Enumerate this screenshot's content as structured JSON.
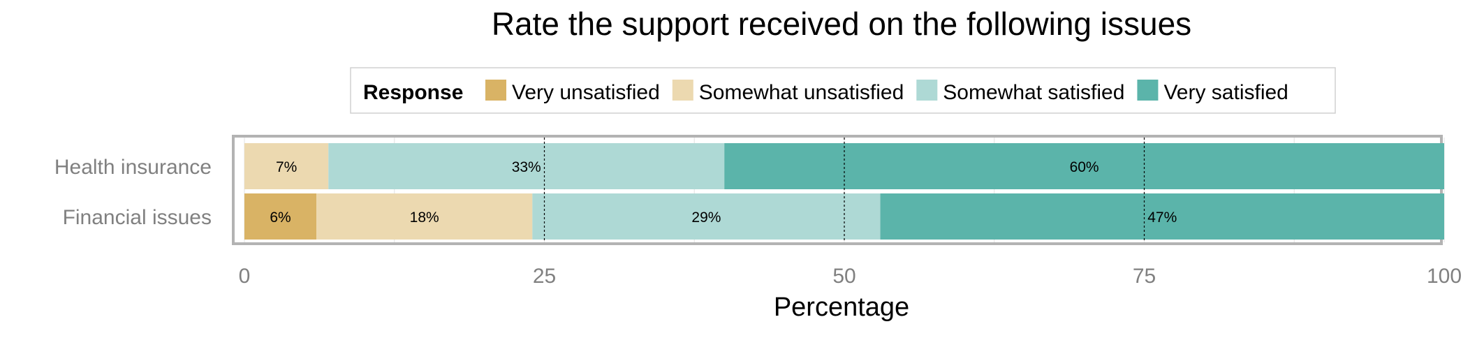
{
  "chart_data": {
    "type": "bar",
    "orientation": "horizontal",
    "stacked": true,
    "title": "Rate the support received on the following issues",
    "xlabel": "Percentage",
    "ylabel": "",
    "xlim": [
      0,
      100
    ],
    "x_ticks": [
      0,
      25,
      50,
      75,
      100
    ],
    "reference_lines": [
      25,
      50,
      75
    ],
    "grid": true,
    "legend": {
      "title": "Response",
      "position": "top"
    },
    "categories": [
      "Health insurance",
      "Financial issues"
    ],
    "series": [
      {
        "name": "Very unsatisfied",
        "color": "#d9b365",
        "values": [
          0,
          6
        ],
        "labels": [
          "",
          "6%"
        ]
      },
      {
        "name": "Somewhat unsatisfied",
        "color": "#ecd9b0",
        "values": [
          7,
          18
        ],
        "labels": [
          "7%",
          "18%"
        ]
      },
      {
        "name": "Somewhat satisfied",
        "color": "#aed9d5",
        "values": [
          33,
          29
        ],
        "labels": [
          "33%",
          "29%"
        ]
      },
      {
        "name": "Very satisfied",
        "color": "#5bb4aa",
        "values": [
          60,
          47
        ],
        "labels": [
          "60%",
          "47%"
        ]
      }
    ]
  }
}
